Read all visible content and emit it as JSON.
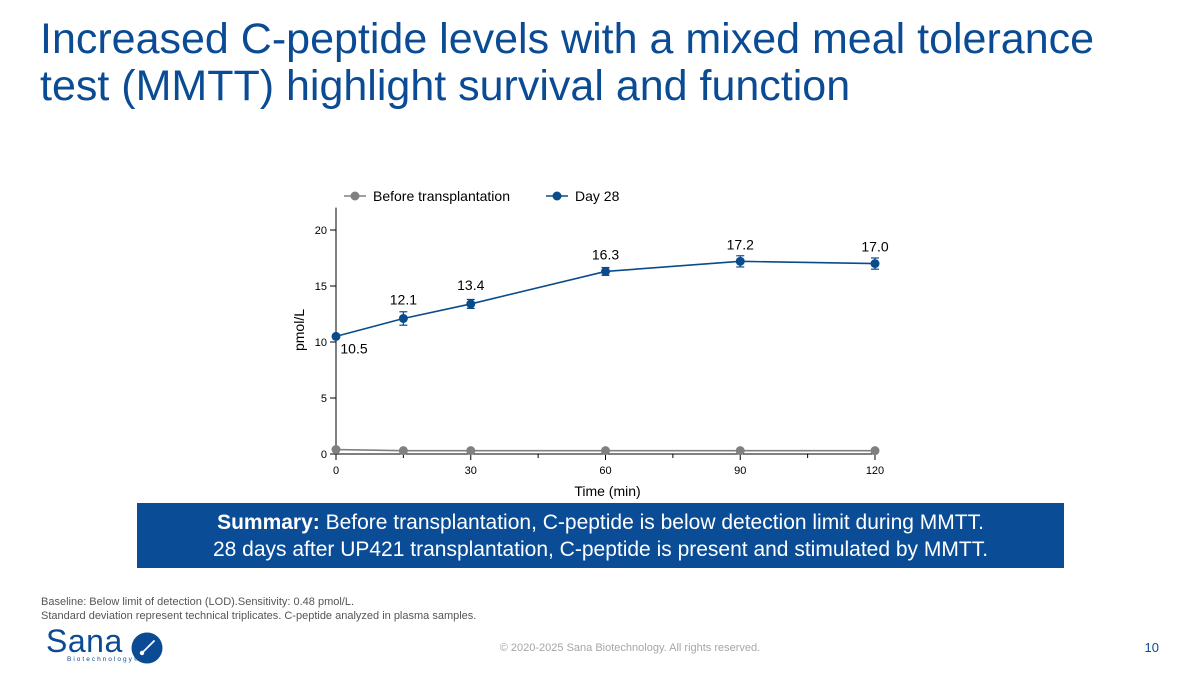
{
  "slide": {
    "title_line1": "Increased C-peptide levels with a mixed meal tolerance",
    "title_line2": "test (MMTT) highlight survival and function",
    "summary_label": "Summary:",
    "summary_line1": " Before transplantation, C-peptide is below detection limit during MMTT.",
    "summary_line2": "28 days after UP421 transplantation, C-peptide is present and stimulated by MMTT.",
    "footnote_line1": "Baseline: Below limit of detection (LOD).Sensitivity: 0.48 pmol/L.",
    "footnote_line2": "Standard deviation represent technical triplicates. C-peptide analyzed in plasma samples.",
    "copyright": "© 2020-2025 Sana Biotechnology. All rights reserved.",
    "page_number": "10",
    "logo_word": "Sana",
    "logo_sub": "Biotechnology®"
  },
  "colors": {
    "title": "#0a4b94",
    "summary_bg": "#0a4d96",
    "series_before": "#808080",
    "series_day28": "#0a4b8c"
  },
  "chart_data": {
    "type": "line",
    "title": "",
    "xlabel": "Time (min)",
    "ylabel": "pmol/L",
    "xlim": [
      0,
      120
    ],
    "ylim": [
      0,
      22
    ],
    "xticks": [
      0,
      30,
      60,
      90,
      120
    ],
    "yticks": [
      0,
      5,
      10,
      15,
      20
    ],
    "legend_position": "top",
    "series": [
      {
        "name": "Before transplantation",
        "x": [
          0,
          15,
          30,
          60,
          90,
          120
        ],
        "values": [
          0.4,
          0.3,
          0.3,
          0.3,
          0.3,
          0.3
        ],
        "error": [
          0,
          0,
          0,
          0,
          0,
          0
        ],
        "labels": [
          "",
          "",
          "",
          "",
          "",
          ""
        ],
        "color": "#808080"
      },
      {
        "name": "Day 28",
        "x": [
          0,
          15,
          30,
          60,
          90,
          120
        ],
        "values": [
          10.5,
          12.1,
          13.4,
          16.3,
          17.2,
          17.0
        ],
        "error": [
          0.0,
          0.6,
          0.4,
          0.35,
          0.5,
          0.5
        ],
        "labels": [
          "10.5",
          "12.1",
          "13.4",
          "16.3",
          "17.2",
          "17.0"
        ],
        "color": "#0a4b8c"
      }
    ]
  }
}
